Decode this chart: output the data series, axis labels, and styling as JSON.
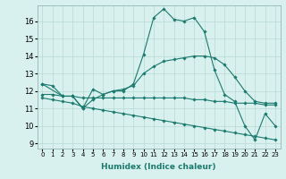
{
  "title": "",
  "xlabel": "Humidex (Indice chaleur)",
  "bg_color": "#d8f0ee",
  "grid_color": "#b8d8d4",
  "line_color": "#1a7a6e",
  "xlim": [
    -0.5,
    23.5
  ],
  "ylim": [
    8.7,
    16.9
  ],
  "xticks": [
    0,
    1,
    2,
    3,
    4,
    5,
    6,
    7,
    8,
    9,
    10,
    11,
    12,
    13,
    14,
    15,
    16,
    17,
    18,
    19,
    20,
    21,
    22,
    23
  ],
  "yticks": [
    9,
    10,
    11,
    12,
    13,
    14,
    15,
    16
  ],
  "series": [
    {
      "x": [
        0,
        1,
        2,
        3,
        4,
        5,
        6,
        7,
        8,
        9,
        10,
        11,
        12,
        13,
        14,
        15,
        16,
        17,
        18,
        19,
        20,
        21,
        22,
        23
      ],
      "y": [
        12.4,
        12.3,
        11.7,
        11.7,
        11.0,
        12.1,
        11.8,
        12.0,
        12.0,
        12.4,
        14.1,
        16.2,
        16.7,
        16.1,
        16.0,
        16.2,
        15.4,
        13.2,
        11.8,
        11.4,
        10.0,
        9.2,
        10.7,
        10.0
      ]
    },
    {
      "x": [
        0,
        2,
        3,
        4,
        5,
        6,
        7,
        8,
        9,
        10,
        11,
        12,
        13,
        14,
        15,
        16,
        17,
        18,
        19,
        20,
        21,
        22,
        23
      ],
      "y": [
        12.4,
        11.7,
        11.7,
        11.0,
        11.5,
        11.8,
        12.0,
        12.1,
        12.3,
        13.0,
        13.4,
        13.7,
        13.8,
        13.9,
        14.0,
        14.0,
        13.9,
        13.5,
        12.8,
        12.0,
        11.4,
        11.3,
        11.3
      ]
    },
    {
      "x": [
        0,
        1,
        2,
        3,
        4,
        5,
        6,
        7,
        8,
        9,
        10,
        11,
        12,
        13,
        14,
        15,
        16,
        17,
        18,
        19,
        20,
        21,
        22,
        23
      ],
      "y": [
        11.8,
        11.8,
        11.7,
        11.7,
        11.6,
        11.6,
        11.6,
        11.6,
        11.6,
        11.6,
        11.6,
        11.6,
        11.6,
        11.6,
        11.6,
        11.5,
        11.5,
        11.4,
        11.4,
        11.3,
        11.3,
        11.3,
        11.2,
        11.2
      ]
    },
    {
      "x": [
        0,
        1,
        2,
        3,
        4,
        5,
        6,
        7,
        8,
        9,
        10,
        11,
        12,
        13,
        14,
        15,
        16,
        17,
        18,
        19,
        20,
        21,
        22,
        23
      ],
      "y": [
        11.6,
        11.5,
        11.4,
        11.3,
        11.1,
        11.0,
        10.9,
        10.8,
        10.7,
        10.6,
        10.5,
        10.4,
        10.3,
        10.2,
        10.1,
        10.0,
        9.9,
        9.8,
        9.7,
        9.6,
        9.5,
        9.4,
        9.3,
        9.2
      ]
    }
  ]
}
